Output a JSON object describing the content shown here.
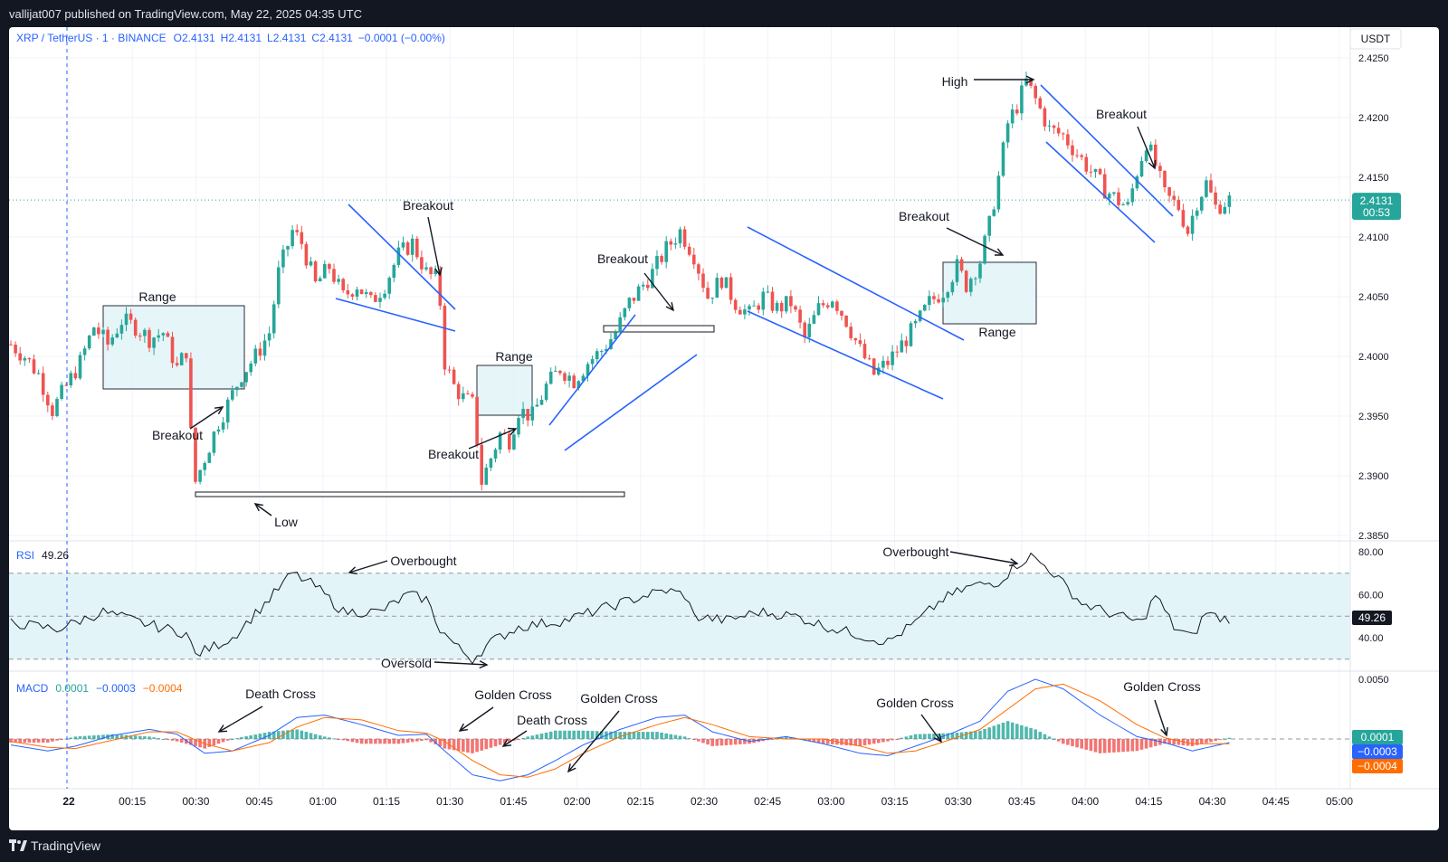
{
  "header": {
    "published": "vallijat007 published on TradingView.com, May 22, 2025 04:35 UTC"
  },
  "footer": {
    "brand": "TradingView",
    "logo_icon": "tradingview-logo-icon"
  },
  "legend": {
    "symbol": "XRP / TetherUS · 1 · BINANCE",
    "open": "O2.4131",
    "high": "H2.4131",
    "low": "L2.4131",
    "close": "C2.4131",
    "change": "−0.0001 (−0.00%)"
  },
  "currency": "USDT",
  "colors": {
    "up": "#26a69a",
    "down": "#ef5350",
    "blue": "#2962ff",
    "macd": "#2962ff",
    "signal": "#ff6d00",
    "zone": "#e3f4f8"
  },
  "price_axis": {
    "ticks": [
      "2.4250",
      "2.4200",
      "2.4150",
      "2.4100",
      "2.4050",
      "2.4000",
      "2.3950",
      "2.3900",
      "2.3850"
    ],
    "current": "2.4131",
    "timer": "00:53"
  },
  "rsi": {
    "label": "RSI",
    "value": "49.26",
    "ticks": [
      "80.00",
      "60.00",
      "40.00"
    ],
    "upper": 70,
    "lower": 30,
    "mid": 50
  },
  "macd": {
    "label": "MACD",
    "hist": "0.0001",
    "macd": "−0.0003",
    "signal": "−0.0004",
    "ticks": [
      "0.0050"
    ],
    "badges": [
      "0.0001",
      "−0.0003",
      "−0.0004"
    ]
  },
  "time_axis": {
    "labels": [
      "22",
      "00:15",
      "00:30",
      "00:45",
      "01:00",
      "01:15",
      "01:30",
      "01:45",
      "02:00",
      "02:15",
      "02:30",
      "02:45",
      "03:00",
      "03:15",
      "03:30",
      "03:45",
      "04:00",
      "04:15",
      "04:30",
      "04:45",
      "05:00"
    ]
  },
  "annotations": {
    "range1": "Range",
    "breakout1": "Breakout",
    "low": "Low",
    "breakout2": "Breakout",
    "range2": "Range",
    "breakout3": "Breakout",
    "breakout4": "Breakout",
    "breakout5": "Breakout",
    "range3": "Range",
    "high": "High",
    "breakout6": "Breakout",
    "rsi_ob1": "Overbought",
    "rsi_ob2": "Overbought",
    "rsi_os": "Oversold",
    "macd_dc1": "Death Cross",
    "macd_gc1": "Golden Cross",
    "macd_dc2": "Death Cross",
    "macd_gc2": "Golden Cross",
    "macd_gc3": "Golden Cross",
    "macd_gc4": "Golden Cross"
  },
  "chart_data": {
    "type": "candlestick",
    "title": "XRP / TetherUS · 1 · BINANCE",
    "ylim": [
      2.385,
      2.425
    ],
    "x_start": "00:05",
    "x_step_minutes": 1,
    "close_path": [
      [
        0,
        2.401
      ],
      [
        3,
        2.4
      ],
      [
        6,
        2.3985
      ],
      [
        9,
        2.3955
      ],
      [
        12,
        2.3975
      ],
      [
        15,
        2.3995
      ],
      [
        18,
        2.4025
      ],
      [
        21,
        2.401
      ],
      [
        24,
        2.403
      ],
      [
        27,
        2.4025
      ],
      [
        30,
        2.4015
      ],
      [
        33,
        2.402
      ],
      [
        36,
        2.399
      ],
      [
        38,
        2.4005
      ],
      [
        39,
        2.3935
      ],
      [
        40,
        2.3895
      ],
      [
        43,
        2.3925
      ],
      [
        45,
        2.3945
      ],
      [
        47,
        2.396
      ],
      [
        50,
        2.3985
      ],
      [
        53,
        2.4
      ],
      [
        56,
        2.402
      ],
      [
        58,
        2.407
      ],
      [
        61,
        2.4105
      ],
      [
        63,
        2.4095
      ],
      [
        66,
        2.406
      ],
      [
        69,
        2.4075
      ],
      [
        72,
        2.405
      ],
      [
        75,
        2.406
      ],
      [
        78,
        2.4045
      ],
      [
        81,
        2.406
      ],
      [
        84,
        2.4085
      ],
      [
        87,
        2.4095
      ],
      [
        90,
        2.407
      ],
      [
        92,
        2.4065
      ],
      [
        93,
        2.4045
      ],
      [
        94,
        2.3995
      ],
      [
        96,
        2.3975
      ],
      [
        98,
        2.3965
      ],
      [
        100,
        2.396
      ],
      [
        101,
        2.393
      ],
      [
        102,
        2.3895
      ],
      [
        104,
        2.3915
      ],
      [
        106,
        2.3935
      ],
      [
        108,
        2.393
      ],
      [
        110,
        2.3955
      ],
      [
        113,
        2.395
      ],
      [
        116,
        2.3975
      ],
      [
        119,
        2.399
      ],
      [
        122,
        2.398
      ],
      [
        125,
        2.3995
      ],
      [
        128,
        2.4005
      ],
      [
        131,
        2.402
      ],
      [
        134,
        2.4045
      ],
      [
        136,
        2.4055
      ],
      [
        139,
        2.407
      ],
      [
        142,
        2.409
      ],
      [
        145,
        2.4105
      ],
      [
        148,
        2.4085
      ],
      [
        151,
        2.405
      ],
      [
        154,
        2.4065
      ],
      [
        157,
        2.4045
      ],
      [
        160,
        2.4035
      ],
      [
        163,
        2.405
      ],
      [
        166,
        2.404
      ],
      [
        169,
        2.4045
      ],
      [
        172,
        2.4015
      ],
      [
        175,
        2.404
      ],
      [
        178,
        2.405
      ],
      [
        181,
        2.403
      ],
      [
        184,
        2.4005
      ],
      [
        187,
        2.3985
      ],
      [
        190,
        2.3995
      ],
      [
        193,
        2.401
      ],
      [
        196,
        2.4025
      ],
      [
        199,
        2.4045
      ],
      [
        202,
        2.4055
      ],
      [
        205,
        2.4075
      ],
      [
        207,
        2.406
      ],
      [
        210,
        2.408
      ],
      [
        212,
        2.411
      ],
      [
        214,
        2.415
      ],
      [
        216,
        2.4195
      ],
      [
        218,
        2.421
      ],
      [
        220,
        2.423
      ],
      [
        222,
        2.4215
      ],
      [
        225,
        2.419
      ],
      [
        228,
        2.4185
      ],
      [
        231,
        2.417
      ],
      [
        234,
        2.4155
      ],
      [
        237,
        2.414
      ],
      [
        240,
        2.413
      ],
      [
        242,
        2.4125
      ],
      [
        244,
        2.4155
      ],
      [
        246,
        2.418
      ],
      [
        248,
        2.416
      ],
      [
        250,
        2.4135
      ],
      [
        253,
        2.4125
      ],
      [
        255,
        2.4105
      ],
      [
        257,
        2.413
      ],
      [
        259,
        2.4145
      ],
      [
        261,
        2.4125
      ],
      [
        264,
        2.4131
      ]
    ],
    "rsi_path": [
      [
        0,
        47
      ],
      [
        10,
        44
      ],
      [
        20,
        52
      ],
      [
        30,
        46
      ],
      [
        38,
        42
      ],
      [
        40,
        32
      ],
      [
        48,
        40
      ],
      [
        56,
        58
      ],
      [
        61,
        70
      ],
      [
        66,
        64
      ],
      [
        72,
        52
      ],
      [
        80,
        52
      ],
      [
        86,
        60
      ],
      [
        90,
        58
      ],
      [
        93,
        44
      ],
      [
        97,
        35
      ],
      [
        100,
        30
      ],
      [
        104,
        38
      ],
      [
        110,
        45
      ],
      [
        120,
        48
      ],
      [
        126,
        52
      ],
      [
        132,
        56
      ],
      [
        138,
        60
      ],
      [
        142,
        62
      ],
      [
        146,
        60
      ],
      [
        148,
        50
      ],
      [
        155,
        48
      ],
      [
        162,
        52
      ],
      [
        170,
        50
      ],
      [
        177,
        45
      ],
      [
        186,
        40
      ],
      [
        190,
        38
      ],
      [
        196,
        47
      ],
      [
        202,
        58
      ],
      [
        208,
        64
      ],
      [
        214,
        66
      ],
      [
        218,
        74
      ],
      [
        221,
        78
      ],
      [
        225,
        72
      ],
      [
        232,
        56
      ],
      [
        240,
        50
      ],
      [
        245,
        47
      ],
      [
        248,
        60
      ],
      [
        252,
        45
      ],
      [
        256,
        40
      ],
      [
        259,
        52
      ],
      [
        262,
        49
      ],
      [
        264,
        49
      ]
    ],
    "macd_path": [
      [
        0,
        -0.0005
      ],
      [
        8,
        -0.001
      ],
      [
        14,
        -0.0006
      ],
      [
        22,
        0.0003
      ],
      [
        30,
        0.0008
      ],
      [
        36,
        0.0004
      ],
      [
        42,
        -0.0012
      ],
      [
        48,
        -0.001
      ],
      [
        56,
        0.0003
      ],
      [
        62,
        0.0018
      ],
      [
        68,
        0.002
      ],
      [
        76,
        0.0012
      ],
      [
        84,
        0.0003
      ],
      [
        90,
        0.0004
      ],
      [
        94,
        -0.001
      ],
      [
        100,
        -0.003
      ],
      [
        106,
        -0.0035
      ],
      [
        112,
        -0.003
      ],
      [
        118,
        -0.0018
      ],
      [
        124,
        -0.0005
      ],
      [
        132,
        0.0008
      ],
      [
        140,
        0.0018
      ],
      [
        146,
        0.002
      ],
      [
        152,
        0.0006
      ],
      [
        160,
        -0.0002
      ],
      [
        168,
        0.0002
      ],
      [
        176,
        -0.0004
      ],
      [
        184,
        -0.0012
      ],
      [
        190,
        -0.0014
      ],
      [
        196,
        -0.0006
      ],
      [
        204,
        0.0005
      ],
      [
        210,
        0.0015
      ],
      [
        216,
        0.004
      ],
      [
        222,
        0.005
      ],
      [
        228,
        0.0042
      ],
      [
        236,
        0.002
      ],
      [
        244,
        0.0002
      ],
      [
        250,
        -0.0003
      ],
      [
        256,
        -0.001
      ],
      [
        264,
        -0.0003
      ]
    ],
    "signal_path": [
      [
        0,
        -0.0002
      ],
      [
        8,
        -0.0007
      ],
      [
        14,
        -0.0008
      ],
      [
        22,
        -0.0001
      ],
      [
        30,
        0.0006
      ],
      [
        36,
        0.0006
      ],
      [
        42,
        -0.0004
      ],
      [
        48,
        -0.001
      ],
      [
        56,
        -0.0003
      ],
      [
        62,
        0.001
      ],
      [
        68,
        0.0018
      ],
      [
        76,
        0.0016
      ],
      [
        84,
        0.0007
      ],
      [
        90,
        0.0005
      ],
      [
        94,
        -0.0002
      ],
      [
        100,
        -0.0018
      ],
      [
        106,
        -0.003
      ],
      [
        112,
        -0.0032
      ],
      [
        118,
        -0.0025
      ],
      [
        124,
        -0.0012
      ],
      [
        132,
        0.0002
      ],
      [
        140,
        0.0012
      ],
      [
        146,
        0.0018
      ],
      [
        152,
        0.0012
      ],
      [
        160,
        0.0002
      ],
      [
        168,
        0.0
      ],
      [
        176,
        0.0
      ],
      [
        184,
        -0.0006
      ],
      [
        190,
        -0.0012
      ],
      [
        196,
        -0.001
      ],
      [
        204,
        0.0
      ],
      [
        210,
        0.0008
      ],
      [
        216,
        0.0025
      ],
      [
        222,
        0.0042
      ],
      [
        228,
        0.0046
      ],
      [
        236,
        0.0032
      ],
      [
        244,
        0.0012
      ],
      [
        250,
        0.0001
      ],
      [
        256,
        -0.0004
      ],
      [
        264,
        -0.0004
      ]
    ]
  }
}
